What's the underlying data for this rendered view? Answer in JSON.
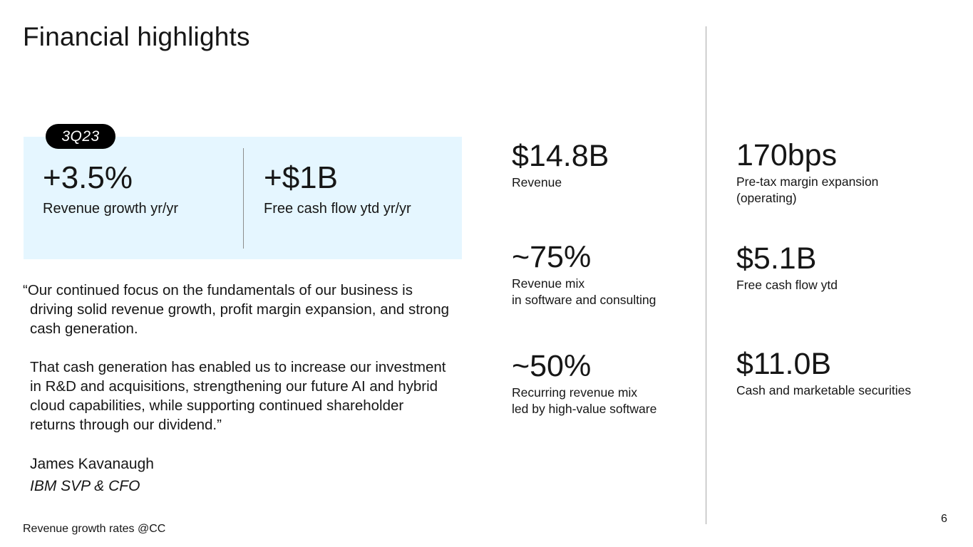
{
  "title": "Financial highlights",
  "quarter": {
    "tag": "3Q23",
    "highlights": [
      {
        "value": "+3.5%",
        "label": "Revenue growth yr/yr"
      },
      {
        "value": "+$1B",
        "label": "Free cash flow ytd yr/yr"
      }
    ]
  },
  "quote": {
    "paragraph1": "“Our continued focus on the fundamentals of our business is driving solid revenue growth, profit margin expansion, and strong cash generation.",
    "paragraph2": "That cash generation has enabled us to increase our investment in R&D and acquisitions, strengthening our future AI and hybrid cloud capabilities, while supporting continued shareholder returns through our dividend.”",
    "speaker": "James Kavanaugh",
    "role": "IBM SVP & CFO"
  },
  "metrics": {
    "col1": [
      {
        "value": "$14.8B",
        "label_line1": "Revenue",
        "label_line2": ""
      },
      {
        "value": "~75%",
        "label_line1": "Revenue mix",
        "label_line2": "in software and consulting"
      },
      {
        "value": "~50%",
        "label_line1": "Recurring revenue mix",
        "label_line2": "led by high-value software"
      }
    ],
    "col2": [
      {
        "value": "170bps",
        "label_line1": "Pre-tax margin expansion",
        "label_line2": "(operating)"
      },
      {
        "value": "$5.1B",
        "label_line1": "Free cash flow ytd",
        "label_line2": ""
      },
      {
        "value": "$11.0B",
        "label_line1": "Cash and marketable securities",
        "label_line2": ""
      }
    ]
  },
  "footnote": "Revenue growth rates @CC",
  "page_number": "6"
}
